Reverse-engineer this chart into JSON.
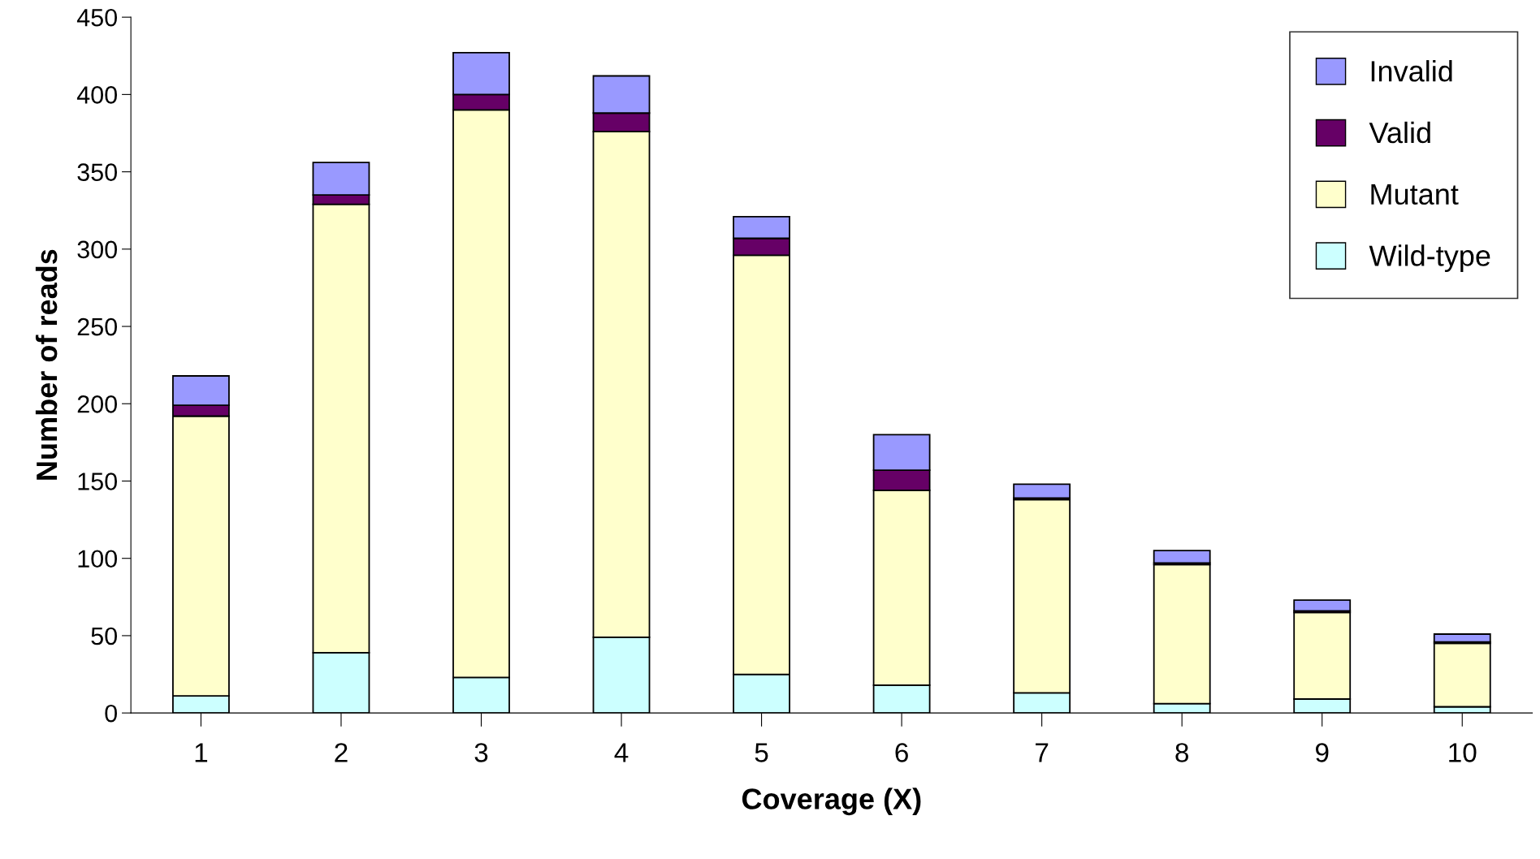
{
  "chart_data": {
    "type": "bar",
    "stacked": true,
    "xlabel": "Coverage (X)",
    "ylabel": "Number of reads",
    "categories": [
      "1",
      "2",
      "3",
      "4",
      "5",
      "6",
      "7",
      "8",
      "9",
      "10"
    ],
    "series": [
      {
        "name": "Wild-type",
        "color": "#ccffff",
        "values": [
          11,
          39,
          23,
          49,
          25,
          18,
          13,
          6,
          9,
          4
        ]
      },
      {
        "name": "Mutant",
        "color": "#ffffcc",
        "values": [
          181,
          290,
          367,
          327,
          271,
          126,
          125,
          90,
          56,
          41
        ]
      },
      {
        "name": "Valid",
        "color": "#660066",
        "values": [
          7,
          6,
          10,
          12,
          11,
          13,
          1,
          1,
          1,
          1
        ]
      },
      {
        "name": "Invalid",
        "color": "#9999ff",
        "values": [
          19,
          21,
          27,
          24,
          14,
          23,
          9,
          8,
          7,
          5
        ]
      }
    ],
    "ylim": [
      0,
      450
    ],
    "yticks": [
      0,
      50,
      100,
      150,
      200,
      250,
      300,
      350,
      400,
      450
    ],
    "grid": false,
    "legend": "top right"
  }
}
